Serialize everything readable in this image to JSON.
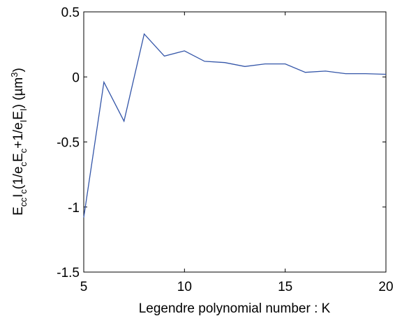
{
  "chart_data": {
    "type": "line",
    "title": "",
    "xlabel": "Legendre polynomial number : K",
    "ylabel": {
      "parts": [
        {
          "t": "E",
          "s": "n"
        },
        {
          "t": "cc",
          "s": "sub"
        },
        {
          "t": "I",
          "s": "n"
        },
        {
          "t": "c",
          "s": "sub"
        },
        {
          "t": "(1/e",
          "s": "n"
        },
        {
          "t": "c",
          "s": "sub"
        },
        {
          "t": "E",
          "s": "n"
        },
        {
          "t": "c",
          "s": "sub"
        },
        {
          "t": "+1/e",
          "s": "n"
        },
        {
          "t": "I",
          "s": "sub"
        },
        {
          "t": "E",
          "s": "n"
        },
        {
          "t": "I",
          "s": "sub"
        },
        {
          "t": ") (µm",
          "s": "n"
        },
        {
          "t": "3",
          "s": "sup"
        },
        {
          "t": ")",
          "s": "n"
        }
      ]
    },
    "xlim": [
      5,
      20
    ],
    "ylim": [
      -1.5,
      0.5
    ],
    "xticks": [
      5,
      10,
      15,
      20
    ],
    "xtick_labels": [
      "5",
      "10",
      "15",
      "20"
    ],
    "yticks": [
      -1.5,
      -1,
      -0.5,
      0,
      0.5
    ],
    "ytick_labels": [
      "-1.5",
      "-1",
      "-0.5",
      "0",
      "0.5"
    ],
    "grid": false,
    "series": [
      {
        "color": "#3355a8",
        "x": [
          5,
          6,
          7,
          8,
          9,
          10,
          11,
          12,
          13,
          14,
          15,
          16,
          17,
          18,
          19,
          20
        ],
        "y": [
          -1.08,
          -0.04,
          -0.34,
          0.33,
          0.16,
          0.2,
          0.12,
          0.11,
          0.08,
          0.1,
          0.1,
          0.035,
          0.045,
          0.025,
          0.025,
          0.02
        ]
      }
    ]
  }
}
